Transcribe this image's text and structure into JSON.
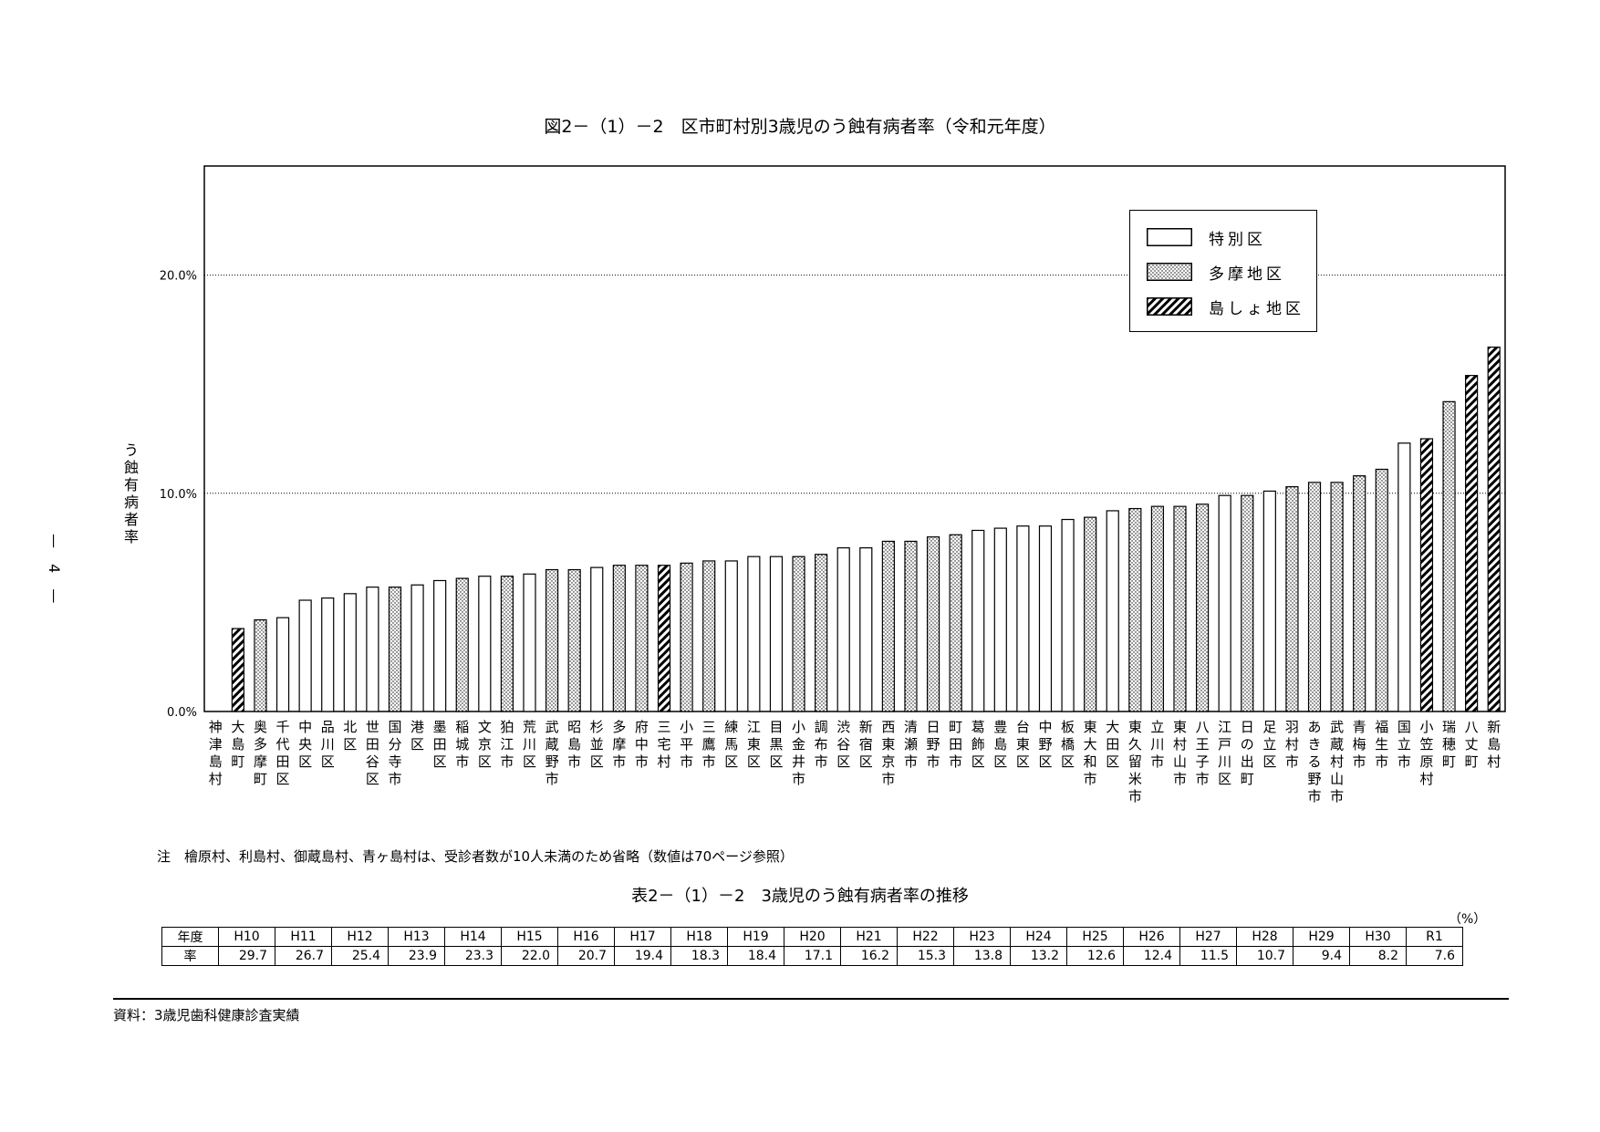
{
  "page_number": "— 4 —",
  "chart_data": {
    "type": "bar",
    "title": "図2－（1）－2　区市町村別3歳児のう蝕有病者率（令和元年度）",
    "ylabel": "う蝕有病者率",
    "ylim": [
      0,
      25
    ],
    "yticks": [
      "0.0%",
      "10.0%",
      "20.0%"
    ],
    "ytick_values": [
      0,
      10,
      20
    ],
    "grid": "dotted horizontal at 10% and 20%",
    "legend_position": "top-right",
    "legend": [
      {
        "key": "ward",
        "label": "特別区",
        "pattern": "blank"
      },
      {
        "key": "tama",
        "label": "多摩地区",
        "pattern": "dotted"
      },
      {
        "key": "island",
        "label": "島しょ地区",
        "pattern": "hatched"
      }
    ],
    "categories": [
      "神津島村",
      "大島町",
      "奥多摩町",
      "千代田区",
      "中央区",
      "品川区",
      "北区",
      "世田谷区",
      "国分寺市",
      "港区",
      "墨田区",
      "稲城市",
      "文京区",
      "狛江市",
      "荒川区",
      "武蔵野市",
      "昭島市",
      "杉並区",
      "多摩市",
      "府中市",
      "三宅村",
      "小平市",
      "三鷹市",
      "練馬区",
      "江東区",
      "目黒区",
      "小金井市",
      "調布市",
      "渋谷区",
      "新宿区",
      "西東京市",
      "清瀬市",
      "日野市",
      "町田市",
      "葛飾区",
      "豊島区",
      "台東区",
      "中野区",
      "板橋区",
      "東大和市",
      "大田区",
      "東久留米市",
      "立川市",
      "東村山市",
      "八王子市",
      "江戸川区",
      "日の出町",
      "足立区",
      "羽村市",
      "あきる野市",
      "武蔵村山市",
      "青梅市",
      "福生市",
      "国立市",
      "小笠原村",
      "瑞穂町",
      "八丈町",
      "新島村"
    ],
    "groups": [
      "island",
      "island",
      "tama",
      "ward",
      "ward",
      "ward",
      "ward",
      "ward",
      "tama",
      "ward",
      "ward",
      "tama",
      "ward",
      "tama",
      "ward",
      "tama",
      "tama",
      "ward",
      "tama",
      "tama",
      "island",
      "tama",
      "tama",
      "ward",
      "ward",
      "ward",
      "tama",
      "tama",
      "ward",
      "ward",
      "tama",
      "tama",
      "tama",
      "tama",
      "ward",
      "ward",
      "ward",
      "ward",
      "ward",
      "tama",
      "ward",
      "tama",
      "tama",
      "tama",
      "tama",
      "ward",
      "tama",
      "ward",
      "tama",
      "tama",
      "tama",
      "tama",
      "tama",
      "ward",
      "island",
      "tama",
      "island",
      "island"
    ],
    "values": [
      0.0,
      3.8,
      4.2,
      4.3,
      5.1,
      5.2,
      5.4,
      5.7,
      5.7,
      5.8,
      6.0,
      6.1,
      6.2,
      6.2,
      6.3,
      6.5,
      6.5,
      6.6,
      6.7,
      6.7,
      6.7,
      6.8,
      6.9,
      6.9,
      7.1,
      7.1,
      7.1,
      7.2,
      7.5,
      7.5,
      7.8,
      7.8,
      8.0,
      8.1,
      8.3,
      8.4,
      8.5,
      8.5,
      8.8,
      8.9,
      9.2,
      9.3,
      9.4,
      9.4,
      9.5,
      9.9,
      9.9,
      10.1,
      10.3,
      10.5,
      10.5,
      10.8,
      11.1,
      12.3,
      12.5,
      14.2,
      15.4,
      16.7
    ]
  },
  "note": "注　檜原村、利島村、御蔵島村、青ヶ島村は、受診者数が10人未満のため省略（数値は70ページ参照）",
  "table": {
    "title": "表2－（1）－2　3歳児のう蝕有病者率の推移",
    "unit": "（%）",
    "header_label": "年度",
    "row_label": "率",
    "years": [
      "H10",
      "H11",
      "H12",
      "H13",
      "H14",
      "H15",
      "H16",
      "H17",
      "H18",
      "H19",
      "H20",
      "H21",
      "H22",
      "H23",
      "H24",
      "H25",
      "H26",
      "H27",
      "H28",
      "H29",
      "H30",
      "R1"
    ],
    "rates": [
      "29.7",
      "26.7",
      "25.4",
      "23.9",
      "23.3",
      "22.0",
      "20.7",
      "19.4",
      "18.3",
      "18.4",
      "17.1",
      "16.2",
      "15.3",
      "13.8",
      "13.2",
      "12.6",
      "12.4",
      "11.5",
      "10.7",
      "9.4",
      "8.2",
      "7.6"
    ]
  },
  "source": "資料：3歳児歯科健康診査実績"
}
